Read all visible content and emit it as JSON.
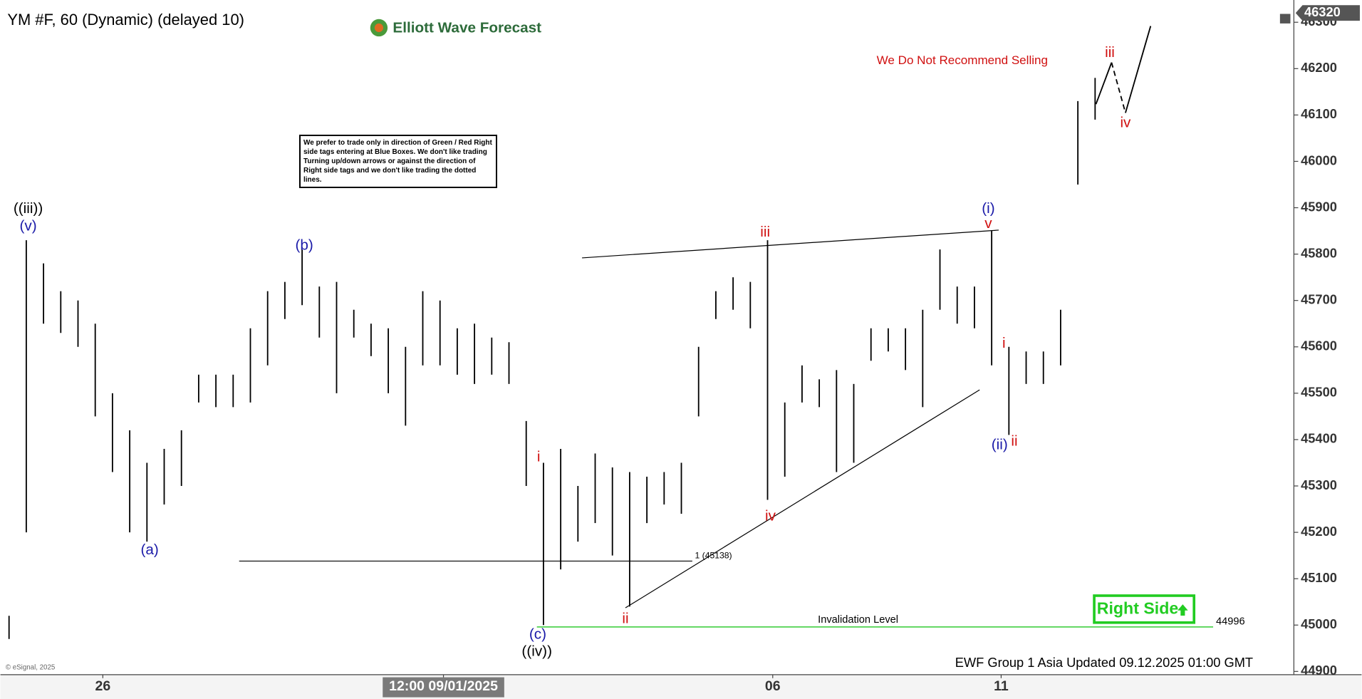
{
  "chart_data": {
    "type": "ohlc",
    "title": "YM #F, 60 (Dynamic) (delayed 10)",
    "brand": "Elliott Wave Forecast",
    "warning": "We Do Not Recommend Selling",
    "note": "We prefer to trade only in direction of Green / Red Right side tags entering at Blue Boxes. We don't like trading Turning up/down arrows or against the direction of Right side tags and we don't like trading the dotted lines.",
    "right_side": "Right Side",
    "footer": "EWF Group 1 Asia Updated 09.12.2025 01:00 GMT",
    "copyright": "© eSignal, 2025",
    "color": "#000000",
    "highs": [
      45020,
      45830,
      45780,
      45720,
      45700,
      45650,
      45500,
      45420,
      45350,
      45380,
      45420,
      45540,
      45540,
      45540,
      45640,
      45720,
      45740,
      45810,
      45730,
      45740,
      45680,
      45650,
      45640,
      45600,
      45720,
      45700,
      45640,
      45650,
      45620,
      45610,
      45440,
      45350,
      45380,
      45300,
      45370,
      45340,
      45330,
      45320,
      45330,
      45350,
      45600,
      45720,
      45750,
      45740,
      45830,
      45480,
      45560,
      45530,
      45550,
      45520,
      45640,
      45640,
      45640,
      45680,
      45810,
      45730,
      45730,
      45850,
      45600,
      45590,
      45590,
      45680,
      46130,
      46180
    ],
    "lows": [
      44970,
      45200,
      45650,
      45630,
      45600,
      45450,
      45330,
      45200,
      45180,
      45260,
      45300,
      45480,
      45470,
      45470,
      45480,
      45560,
      45660,
      45690,
      45620,
      45500,
      45620,
      45580,
      45500,
      45430,
      45560,
      45560,
      45540,
      45520,
      45540,
      45520,
      45300,
      45000,
      45120,
      45180,
      45220,
      45150,
      45040,
      45220,
      45260,
      45240,
      45450,
      45660,
      45680,
      45640,
      45270,
      45320,
      45480,
      45470,
      45330,
      45350,
      45570,
      45590,
      45550,
      45470,
      45680,
      45650,
      45640,
      45560,
      45410,
      45520,
      45520,
      45560,
      45950,
      46090
    ],
    "ylim": [
      44893,
      46333
    ],
    "yticks": [
      44900,
      45000,
      45100,
      45200,
      45300,
      45400,
      45500,
      45600,
      45700,
      45800,
      45900,
      46000,
      46100,
      46200,
      46300
    ],
    "xlim": [
      0,
      75.03
    ],
    "xticks": [
      {
        "value": 5.94,
        "label": "26"
      },
      {
        "value": 25.7,
        "label": "12:00 09/01/2025"
      },
      {
        "value": 44.8,
        "label": "06"
      },
      {
        "value": 58.05,
        "label": "11"
      }
    ],
    "last_price": 46320,
    "extension": {
      "value": 45138,
      "label": "1 (45138)"
    },
    "invalidation": {
      "value": 44996,
      "label": "Invalidation Level",
      "color": "#33cc33"
    },
    "wave_labels": [
      {
        "text": "((iii))",
        "color": "#000000"
      },
      {
        "text": "(v)",
        "color": "#1a1aa8"
      },
      {
        "text": "(b)",
        "color": "#1a1aa8"
      },
      {
        "text": "(a)",
        "color": "#1a1aa8"
      },
      {
        "text": "i",
        "color": "#d01010"
      },
      {
        "text": "(c)",
        "color": "#1a1aa8"
      },
      {
        "text": "((iv))",
        "color": "#000000"
      },
      {
        "text": "ii",
        "color": "#d01010"
      },
      {
        "text": "iii",
        "color": "#d01010"
      },
      {
        "text": "iv",
        "color": "#d01010"
      },
      {
        "text": "(i)",
        "color": "#1a1aa8"
      },
      {
        "text": "v",
        "color": "#d01010"
      },
      {
        "text": "i",
        "color": "#d01010"
      },
      {
        "text": "(ii)",
        "color": "#1a1aa8"
      },
      {
        "text": "ii",
        "color": "#d01010"
      },
      {
        "text": "iii",
        "color": "#d01010"
      },
      {
        "text": "iv",
        "color": "#d01010"
      }
    ]
  }
}
